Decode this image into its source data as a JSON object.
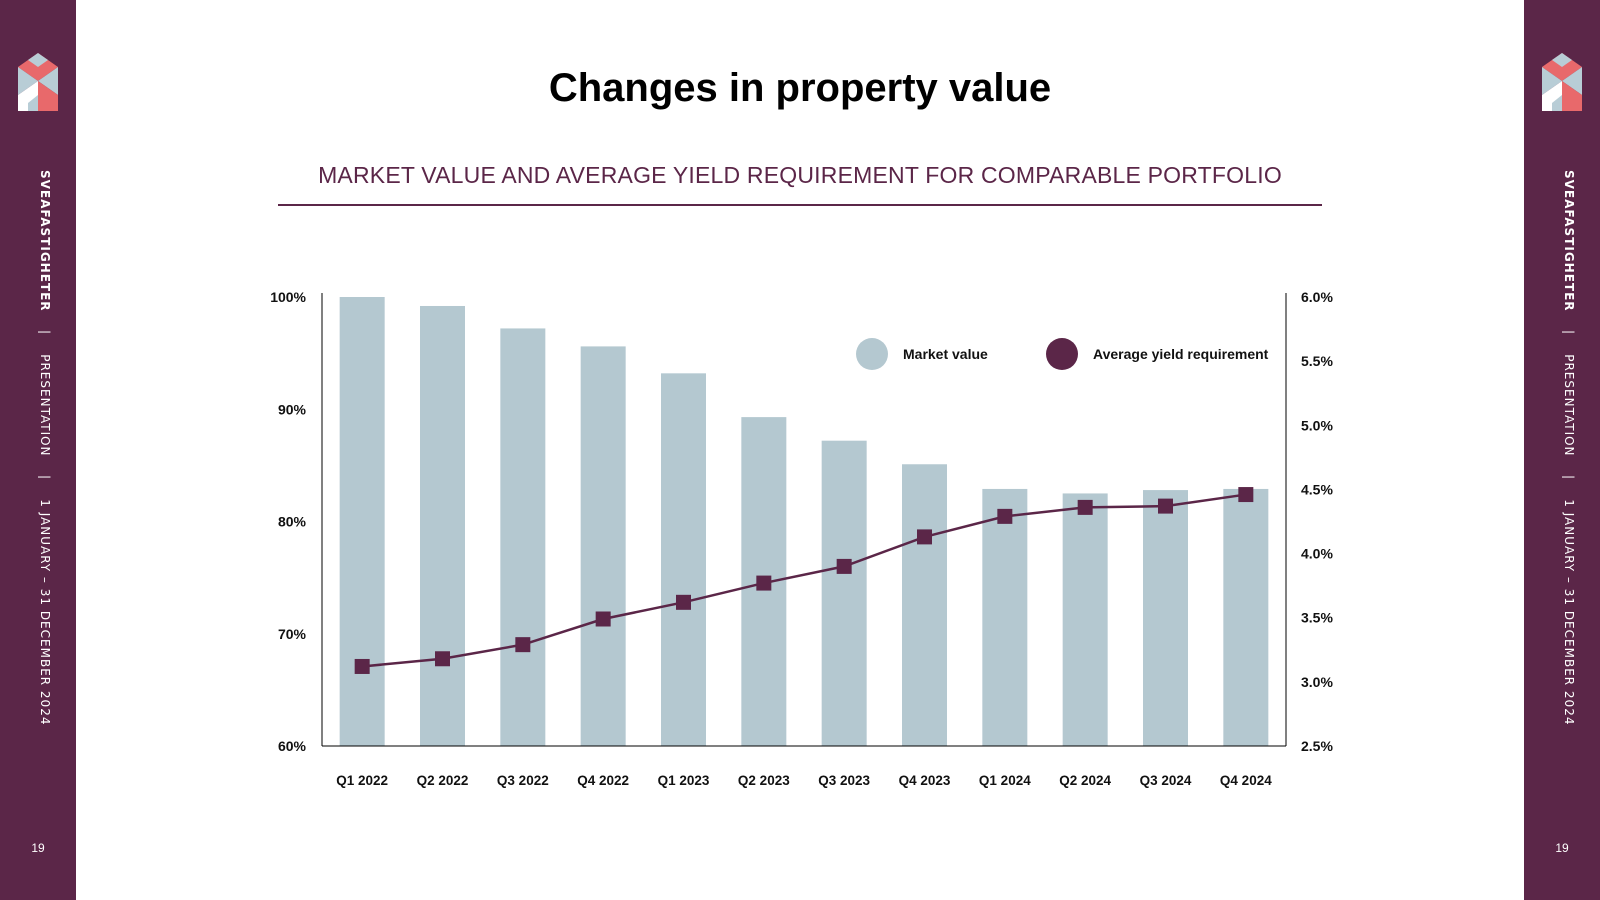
{
  "sidebar": {
    "brand": "SVEAFASTIGHETER",
    "separator": "|",
    "doc_type": "PRESENTATION",
    "period": "1 JANUARY – 31 DECEMBER 2024",
    "page_number": "19"
  },
  "colors": {
    "sidebar_bg": "#5b2648",
    "bar": "#b4c8d0",
    "line": "#5b2648",
    "logo_pink": "#e8696b",
    "logo_blue": "#b8cdd6"
  },
  "title": "Changes in property value",
  "chart_data": {
    "type": "bar",
    "title": "MARKET VALUE AND AVERAGE YIELD REQUIREMENT FOR COMPARABLE PORTFOLIO",
    "categories": [
      "Q1 2022",
      "Q2 2022",
      "Q3 2022",
      "Q4 2022",
      "Q1 2023",
      "Q2 2023",
      "Q3 2023",
      "Q4 2023",
      "Q1 2024",
      "Q2 2024",
      "Q3 2024",
      "Q4 2024"
    ],
    "series": [
      {
        "name": "Market value",
        "type": "bar",
        "axis": "left",
        "values": [
          100.0,
          99.2,
          97.2,
          95.6,
          93.2,
          89.3,
          87.2,
          85.1,
          82.9,
          82.5,
          82.8,
          82.9
        ]
      },
      {
        "name": "Average yield requirement",
        "type": "line",
        "axis": "right",
        "values": [
          3.12,
          3.18,
          3.29,
          3.49,
          3.62,
          3.77,
          3.9,
          4.13,
          4.29,
          4.36,
          4.37,
          4.46
        ]
      }
    ],
    "y_left": {
      "min": 60,
      "max": 100,
      "ticks": [
        "60%",
        "70%",
        "80%",
        "90%",
        "100%"
      ],
      "tick_values": [
        60,
        70,
        80,
        90,
        100
      ]
    },
    "y_right": {
      "min": 2.5,
      "max": 6.0,
      "ticks": [
        "2.5%",
        "3.0%",
        "3.5%",
        "4.0%",
        "4.5%",
        "5.0%",
        "5.5%",
        "6.0%"
      ],
      "tick_values": [
        2.5,
        3.0,
        3.5,
        4.0,
        4.5,
        5.0,
        5.5,
        6.0
      ]
    },
    "legend": {
      "position": "top-right",
      "items": [
        "Market value",
        "Average yield requirement"
      ]
    },
    "grid": false,
    "xlabel": "",
    "ylabel": ""
  }
}
